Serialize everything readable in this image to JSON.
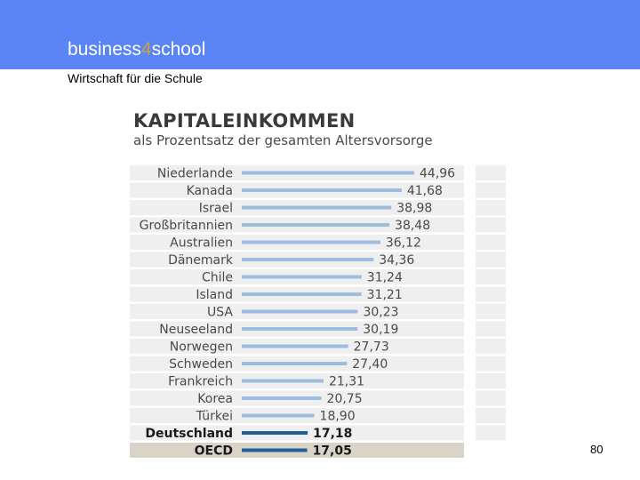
{
  "header": {
    "brand_prefix": "business",
    "brand_digit": "4",
    "brand_suffix": "school",
    "subtitle": "Wirtschaft für die Schule",
    "bar_color": "#5b84f5",
    "accent_color": "#c8a43b"
  },
  "page_number": "80",
  "chart_data": {
    "type": "bar",
    "orientation": "horizontal",
    "title": "KAPITALEINKOMMEN",
    "subtitle": "als Prozentsatz der gesamten Altersvorsorge",
    "categories": [
      "Niederlande",
      "Kanada",
      "Israel",
      "Großbritannien",
      "Australien",
      "Dänemark",
      "Chile",
      "Island",
      "USA",
      "Neuseeland",
      "Norwegen",
      "Schweden",
      "Frankreich",
      "Korea",
      "Türkei",
      "Deutschland",
      "OECD"
    ],
    "values": [
      44.96,
      41.68,
      38.98,
      38.48,
      36.12,
      34.36,
      31.24,
      31.21,
      30.23,
      30.19,
      27.73,
      27.4,
      21.31,
      20.75,
      18.9,
      17.18,
      17.05
    ],
    "value_labels": [
      "44,96",
      "41,68",
      "38,98",
      "38,48",
      "36,12",
      "34,36",
      "31,24",
      "31,21",
      "30,23",
      "30,19",
      "27,73",
      "27,40",
      "21,31",
      "20,75",
      "18,90",
      "17,18",
      "17,05"
    ],
    "highlighted": [
      "Deutschland",
      "OECD"
    ],
    "colors": {
      "bar": "#9ebbe0",
      "bar_highlight": "#1f5f99",
      "label_text": "#4a4a4a",
      "label_highlight": "#1a1a1a",
      "row_band": "#efefef",
      "oecd_band": "#d9d3c8"
    },
    "xlim": [
      0,
      50
    ]
  }
}
